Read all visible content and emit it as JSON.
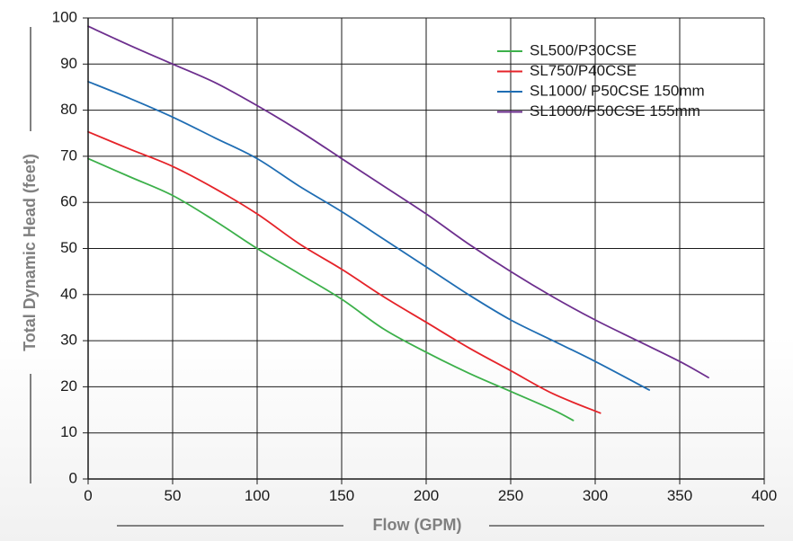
{
  "chart_data": {
    "type": "line",
    "title": "",
    "xlabel": "Flow (GPM)",
    "ylabel": "Total Dynamic Head (feet)",
    "xlim": [
      0,
      400
    ],
    "ylim": [
      0,
      100
    ],
    "x_ticks": [
      "0",
      "50",
      "100",
      "150",
      "200",
      "250",
      "300",
      "350",
      "400"
    ],
    "y_ticks": [
      "0",
      "10",
      "20",
      "30",
      "40",
      "50",
      "60",
      "70",
      "80",
      "90",
      "100"
    ],
    "grid": true,
    "legend_position": "top-right",
    "series": [
      {
        "name": "SL500/P30CSE",
        "color": "#3cb04a",
        "points": [
          [
            0,
            69.5
          ],
          [
            25,
            65.5
          ],
          [
            50,
            61.5
          ],
          [
            75,
            56
          ],
          [
            100,
            50
          ],
          [
            125,
            44.5
          ],
          [
            150,
            39
          ],
          [
            175,
            32.5
          ],
          [
            200,
            27.5
          ],
          [
            225,
            23
          ],
          [
            250,
            19
          ],
          [
            275,
            15
          ],
          [
            287,
            12.7
          ]
        ]
      },
      {
        "name": "SL750/P40CSE",
        "color": "#e52329",
        "points": [
          [
            0,
            75.3
          ],
          [
            25,
            71.5
          ],
          [
            50,
            67.8
          ],
          [
            75,
            63
          ],
          [
            100,
            57.5
          ],
          [
            125,
            51
          ],
          [
            150,
            45.5
          ],
          [
            175,
            39.5
          ],
          [
            200,
            34
          ],
          [
            225,
            28.5
          ],
          [
            250,
            23.5
          ],
          [
            275,
            18.5
          ],
          [
            303,
            14.3
          ]
        ]
      },
      {
        "name": "SL1000/ P50CSE 150mm",
        "color": "#1f6db3",
        "points": [
          [
            0,
            86.2
          ],
          [
            25,
            82.5
          ],
          [
            50,
            78.5
          ],
          [
            75,
            74
          ],
          [
            100,
            69.5
          ],
          [
            125,
            63.5
          ],
          [
            150,
            58
          ],
          [
            175,
            52
          ],
          [
            200,
            46
          ],
          [
            225,
            40
          ],
          [
            250,
            34.5
          ],
          [
            275,
            30
          ],
          [
            300,
            25.5
          ],
          [
            332,
            19.3
          ]
        ]
      },
      {
        "name": "SL1000/P50CSE 155mm",
        "color": "#6d2f8e",
        "points": [
          [
            0,
            98.2
          ],
          [
            25,
            94
          ],
          [
            50,
            90
          ],
          [
            75,
            86
          ],
          [
            100,
            81
          ],
          [
            125,
            75.5
          ],
          [
            150,
            69.5
          ],
          [
            175,
            63.5
          ],
          [
            200,
            57.5
          ],
          [
            225,
            51
          ],
          [
            250,
            45
          ],
          [
            275,
            39.5
          ],
          [
            300,
            34.5
          ],
          [
            325,
            30
          ],
          [
            350,
            25.5
          ],
          [
            367,
            22
          ]
        ]
      }
    ]
  }
}
